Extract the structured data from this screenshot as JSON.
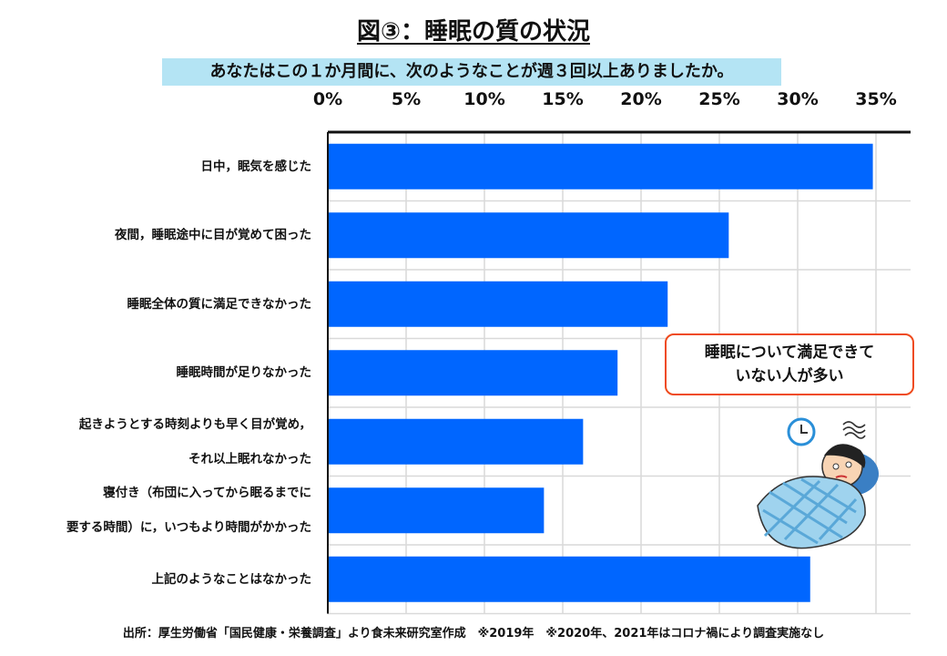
{
  "chart_data": {
    "type": "bar",
    "orientation": "horizontal",
    "title": "図③：睡眠の質の状況",
    "subtitle": "あなたはこの１か月間に、次のようなことが週３回以上ありましたか。",
    "categories": [
      [
        "日中，眠気を感じた"
      ],
      [
        "夜間，睡眠途中に目が覚めて困った"
      ],
      [
        "睡眠全体の質に満足できなかった"
      ],
      [
        "睡眠時間が足りなかった"
      ],
      [
        "起きようとする時刻よりも早く目が覚め，",
        "それ以上眠れなかった"
      ],
      [
        "寝付き（布団に入ってから眠るまでに",
        "要する時間）に，いつもより時間がかかった"
      ],
      [
        "上記のようなことはなかった"
      ]
    ],
    "values": [
      34.8,
      25.6,
      21.7,
      18.5,
      16.3,
      13.8,
      30.8
    ],
    "unit": "%",
    "xlim": [
      0,
      35
    ],
    "tick_labels": [
      "0%",
      "5%",
      "10%",
      "15%",
      "20%",
      "25%",
      "30%",
      "35%"
    ],
    "axis_position": "top",
    "grid": true,
    "bar_color": "#0066ff",
    "annotation": [
      "睡眠について満足できて",
      "いない人が多い"
    ],
    "annotation_border_color": "#ef4a1c",
    "source": "出所：厚生労働省「国民健康・栄養調査」より食未来研究室作成　※2019年　※2020年、2021年はコロナ禍により調査実施なし"
  }
}
